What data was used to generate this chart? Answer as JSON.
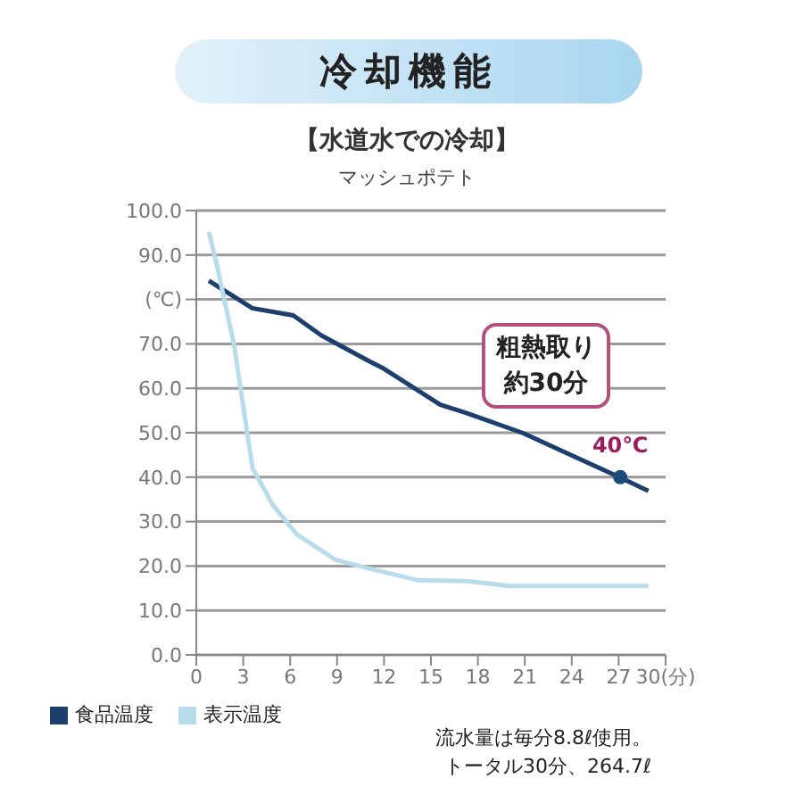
{
  "chart_data": {
    "type": "line",
    "title": "冷却機能",
    "subtitle": "【水道水での冷却】",
    "annotations": [
      "マッシュポテト",
      "粗熱取り",
      "約30分",
      "流水量は毎分8.8ℓ使用。",
      "トータル30分、264.7ℓ",
      {
        "text": "40℃",
        "x": 27.1,
        "y": 40
      }
    ],
    "series": [
      {
        "name": "食品温度",
        "color": "#1c3f6e",
        "x": [
          0.8,
          3.6,
          6.2,
          8,
          11.1,
          12,
          15.6,
          17.3,
          20.9,
          27.1,
          28.9
        ],
        "values": [
          84.2,
          78,
          76.4,
          71.9,
          66,
          64.4,
          56.3,
          54.4,
          49.9,
          39.9,
          36.9
        ]
      },
      {
        "name": "表示温度",
        "color": "#b9dcea",
        "x": [
          0.8,
          1.3,
          2.4,
          3.6,
          4.9,
          6.4,
          8.9,
          11.1,
          14.2,
          17.3,
          20,
          28.9
        ],
        "values": [
          95.2,
          88,
          70,
          42,
          33.7,
          27.2,
          21.4,
          19.4,
          16.8,
          16.6,
          15.5,
          15.5
        ]
      }
    ],
    "xlim": [
      0,
      30
    ],
    "xticks": [
      0,
      3,
      6,
      9,
      12,
      15,
      18,
      21,
      24,
      27,
      {
        "value": 30,
        "label": "30(分)"
      }
    ],
    "ylim": [
      0,
      100
    ],
    "yticks": [
      {
        "value": 0,
        "label": "0.0"
      },
      {
        "value": 10,
        "label": "10.0"
      },
      {
        "value": 20,
        "label": "20.0"
      },
      {
        "value": 30,
        "label": "30.0"
      },
      {
        "value": 40,
        "label": "40.0"
      },
      {
        "value": 50,
        "label": "50.0"
      },
      {
        "value": 60,
        "label": "60.0"
      },
      {
        "value": 70,
        "label": "70.0"
      },
      {
        "value": 80,
        "label": "(℃)"
      },
      {
        "value": 90,
        "label": "90.0"
      },
      {
        "value": 100,
        "label": "100.0"
      }
    ],
    "grid": "y",
    "legend": "bottom left",
    "line_style": "solid",
    "marker": "none"
  }
}
